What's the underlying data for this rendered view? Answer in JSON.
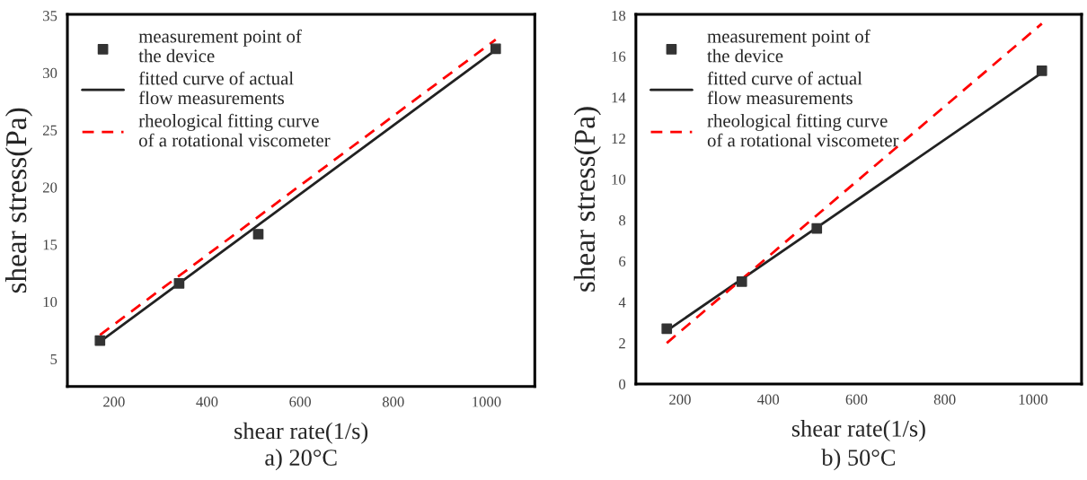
{
  "chart_data": [
    {
      "type": "scatter",
      "title": "a) 20°C",
      "xlabel": "shear rate(1/s)",
      "ylabel": "shear stress(Pa)",
      "xlim": [
        100,
        1104
      ],
      "xticks": [
        200,
        400,
        600,
        800,
        1000
      ],
      "ylim": [
        2.6,
        35.1
      ],
      "yticks": [
        5,
        10,
        15,
        20,
        25,
        30,
        35
      ],
      "grid": false,
      "legend": "top left",
      "series": [
        {
          "name": "measurement point of\nthe device",
          "marker": "square",
          "color": "#333333",
          "x": [
            170,
            340,
            510,
            1020
          ],
          "values": [
            6.6,
            11.6,
            15.9,
            32.1
          ]
        },
        {
          "name": "fitted curve of actual\nflow measurements",
          "type": "line",
          "line_style": "solid",
          "color": "#222222",
          "x": [
            170,
            1020
          ],
          "values": [
            6.5,
            32.0
          ]
        },
        {
          "name": "rheological fitting curve\nof a rotational viscometer",
          "type": "line",
          "line_style": "dashed",
          "color": "#ff0000",
          "x": [
            170,
            1020
          ],
          "values": [
            7.1,
            32.9
          ]
        }
      ]
    },
    {
      "type": "scatter",
      "title": "b) 50°C",
      "xlabel": "shear rate(1/s)",
      "ylabel": "shear stress(Pa)",
      "xlim": [
        100,
        1110
      ],
      "xticks": [
        200,
        400,
        600,
        800,
        1000
      ],
      "ylim": [
        0,
        18.05
      ],
      "yticks": [
        0,
        2,
        4,
        6,
        8,
        10,
        12,
        14,
        16,
        18
      ],
      "grid": false,
      "legend": "top left",
      "series": [
        {
          "name": "measurement point of\nthe device",
          "marker": "square",
          "color": "#333333",
          "x": [
            170,
            340,
            510,
            1020
          ],
          "values": [
            2.7,
            5.0,
            7.6,
            15.3
          ]
        },
        {
          "name": "fitted curve of actual\nflow measurements",
          "type": "line",
          "line_style": "solid",
          "color": "#222222",
          "x": [
            170,
            1020
          ],
          "values": [
            2.6,
            15.2
          ]
        },
        {
          "name": "rheological fitting curve\nof a rotational viscometer",
          "type": "line",
          "line_style": "dashed",
          "color": "#ff0000",
          "x": [
            170,
            1020
          ],
          "values": [
            2.0,
            17.6
          ]
        }
      ]
    }
  ]
}
